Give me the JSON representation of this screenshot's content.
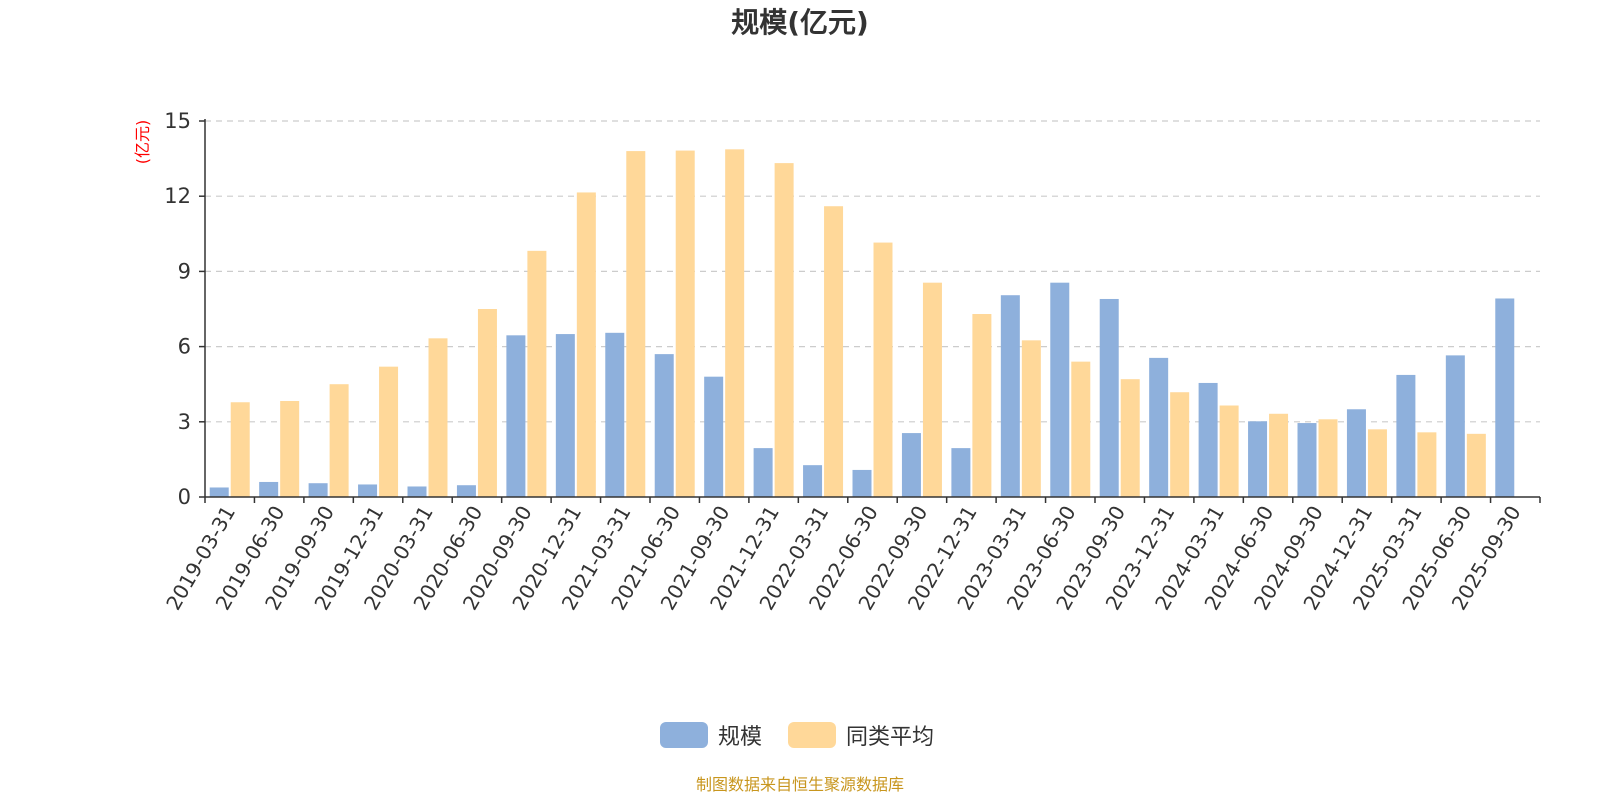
{
  "chart_data": {
    "type": "bar",
    "title": "规模(亿元)",
    "ylabel": "(亿元)",
    "xlabel": "",
    "ylim": [
      0,
      15
    ],
    "yticks": [
      0,
      3,
      6,
      9,
      12,
      15
    ],
    "grid": true,
    "legend_position": "bottom-center",
    "categories": [
      "2019-03-31",
      "2019-06-30",
      "2019-09-30",
      "2019-12-31",
      "2020-03-31",
      "2020-06-30",
      "2020-09-30",
      "2020-12-31",
      "2021-03-31",
      "2021-06-30",
      "2021-09-30",
      "2021-12-31",
      "2022-03-31",
      "2022-06-30",
      "2022-09-30",
      "2022-12-31",
      "2023-03-31",
      "2023-06-30",
      "2023-09-30",
      "2023-12-31",
      "2024-03-31",
      "2024-06-30",
      "2024-09-30",
      "2024-12-31",
      "2025-03-31",
      "2025-06-30",
      "2025-09-30"
    ],
    "series": [
      {
        "name": "规模",
        "color": "#8eb0dc",
        "values": [
          0.38,
          0.6,
          0.55,
          0.5,
          0.42,
          0.47,
          6.45,
          6.5,
          6.55,
          5.7,
          4.8,
          1.95,
          1.27,
          1.08,
          2.55,
          1.95,
          8.05,
          8.55,
          7.9,
          5.55,
          4.55,
          3.02,
          2.95,
          3.5,
          4.87,
          5.65,
          7.92
        ]
      },
      {
        "name": "同类平均",
        "color": "#ffd899",
        "values": [
          3.78,
          3.83,
          4.5,
          5.2,
          6.33,
          7.5,
          9.82,
          12.15,
          13.8,
          13.82,
          13.87,
          13.32,
          11.6,
          10.15,
          8.55,
          7.3,
          6.25,
          5.4,
          4.7,
          4.18,
          3.65,
          3.32,
          3.1,
          2.7,
          2.58,
          2.52,
          null
        ]
      }
    ]
  },
  "footer": {
    "source_text": "制图数据来自恒生聚源数据库"
  },
  "colors": {
    "axis": "#333333",
    "grid": "#cccccc",
    "unit_label": "#ff0000",
    "footer": "#c8961e"
  }
}
